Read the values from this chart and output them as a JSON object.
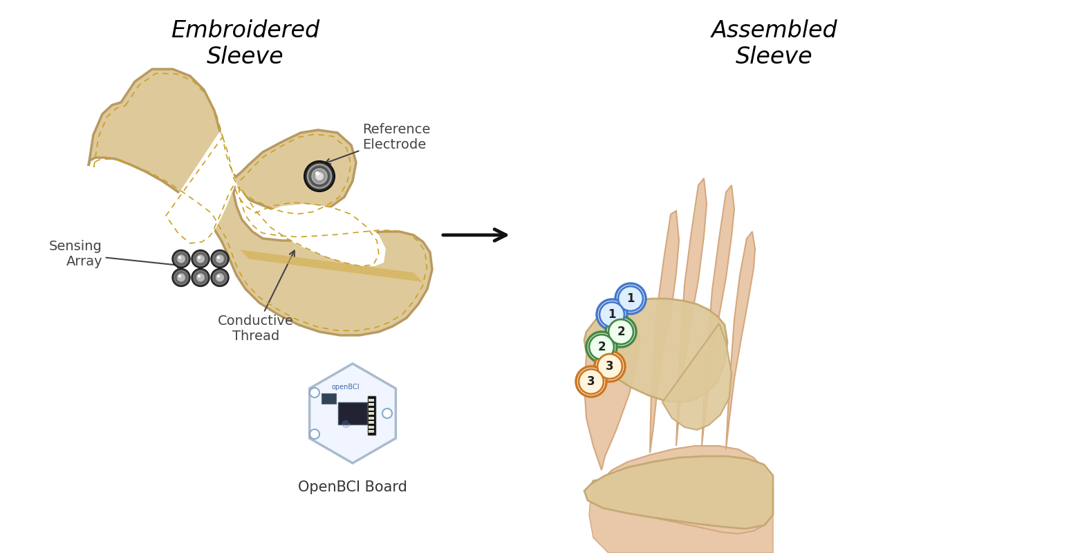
{
  "title_left": "Embroidered\nSleeve",
  "title_right": "Assembled\nSleeve",
  "label_reference": "Reference\nElectrode",
  "label_sensing": "Sensing\nArray",
  "label_conductive": "Conductive\nThread",
  "label_openbci": "OpenBCI Board",
  "bg_color": "#ffffff",
  "fabric_color": "#DEC99A",
  "fabric_shadow": "#C8AD7A",
  "fabric_edge_color": "#B89A60",
  "stitch_color": "#C8A020",
  "electrode_dark": "#3A3A3A",
  "electrode_mid": "#888888",
  "electrode_light": "#BBBBBB",
  "arrow_color": "#111111",
  "label_color": "#444444",
  "title_fontsize": 24,
  "label_fontsize": 14,
  "openbci_fontsize": 15,
  "elec_blue_face": "#DDEEFF",
  "elec_blue_edge": "#4477CC",
  "elec_green_face": "#EEFFEE",
  "elec_green_edge": "#448844",
  "elec_orange_face": "#FFF5DD",
  "elec_orange_edge": "#CC7722",
  "board_bg": "#EEF4FF",
  "board_edge": "#AABBCC",
  "hand_skin": "#E8C8A8",
  "hand_skin_dark": "#D4A880",
  "sleeve_worn_color": "#DEC99A",
  "sleeve_worn_edge": "#C4A870"
}
